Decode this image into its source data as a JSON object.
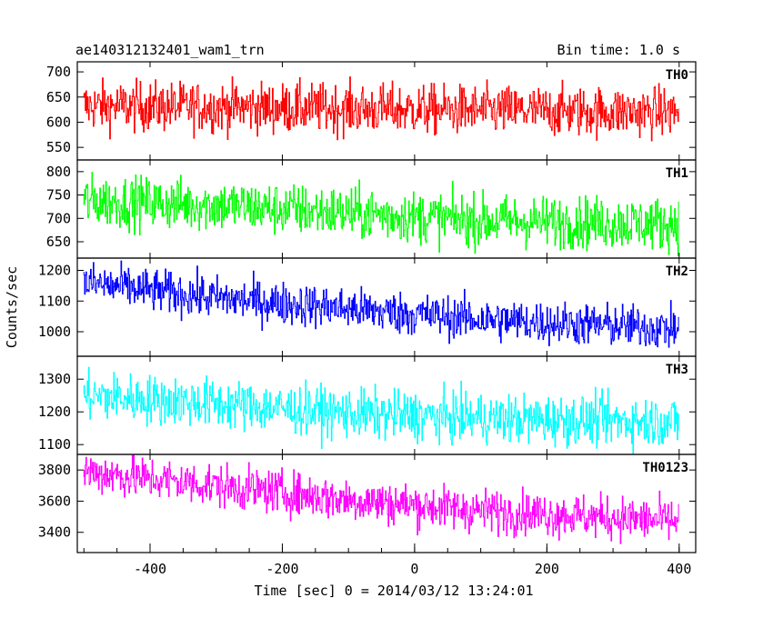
{
  "header": {
    "title": "ae140312132401_wam1_trn",
    "bin_time": "Bin time: 1.0 s"
  },
  "chart_data": {
    "type": "line",
    "title": "ae140312132401_wam1_trn",
    "subtitle": "Bin time: 1.0 s",
    "xlabel": "Time [sec] 0 = 2014/03/12 13:24:01",
    "ylabel": "Counts/sec",
    "xlim": [
      -510,
      425
    ],
    "xticks": [
      -400,
      -200,
      0,
      200,
      400
    ],
    "x_start": -500,
    "x_end": 400,
    "x_step": 1,
    "grid": false,
    "panels": [
      {
        "name": "TH0",
        "color": "#ff0000",
        "ylim": [
          525,
          720
        ],
        "yticks": [
          550,
          600,
          650,
          700
        ],
        "trend": [
          [
            -500,
            632
          ],
          [
            -300,
            630
          ],
          [
            0,
            625
          ],
          [
            200,
            622
          ],
          [
            400,
            620
          ]
        ],
        "noise_sd": 25
      },
      {
        "name": "TH1",
        "color": "#00ff00",
        "ylim": [
          615,
          825
        ],
        "yticks": [
          650,
          700,
          750,
          800
        ],
        "trend": [
          [
            -500,
            738
          ],
          [
            -300,
            728
          ],
          [
            -100,
            712
          ],
          [
            100,
            695
          ],
          [
            400,
            688
          ]
        ],
        "noise_sd": 28
      },
      {
        "name": "TH2",
        "color": "#0000ff",
        "ylim": [
          920,
          1240
        ],
        "yticks": [
          1000,
          1100,
          1200
        ],
        "trend": [
          [
            -500,
            1160
          ],
          [
            -300,
            1110
          ],
          [
            -100,
            1075
          ],
          [
            100,
            1040
          ],
          [
            400,
            1010
          ]
        ],
        "noise_sd": 35
      },
      {
        "name": "TH3",
        "color": "#00ffff",
        "ylim": [
          1070,
          1370
        ],
        "yticks": [
          1100,
          1200,
          1300
        ],
        "trend": [
          [
            -500,
            1250
          ],
          [
            -300,
            1225
          ],
          [
            -100,
            1195
          ],
          [
            100,
            1180
          ],
          [
            400,
            1170
          ]
        ],
        "noise_sd": 38
      },
      {
        "name": "TH0123",
        "color": "#ff00ff",
        "ylim": [
          3270,
          3900
        ],
        "yticks": [
          3400,
          3600,
          3800
        ],
        "trend": [
          [
            -500,
            3790
          ],
          [
            -300,
            3700
          ],
          [
            -100,
            3610
          ],
          [
            100,
            3540
          ],
          [
            400,
            3470
          ]
        ],
        "noise_sd": 70
      }
    ]
  }
}
